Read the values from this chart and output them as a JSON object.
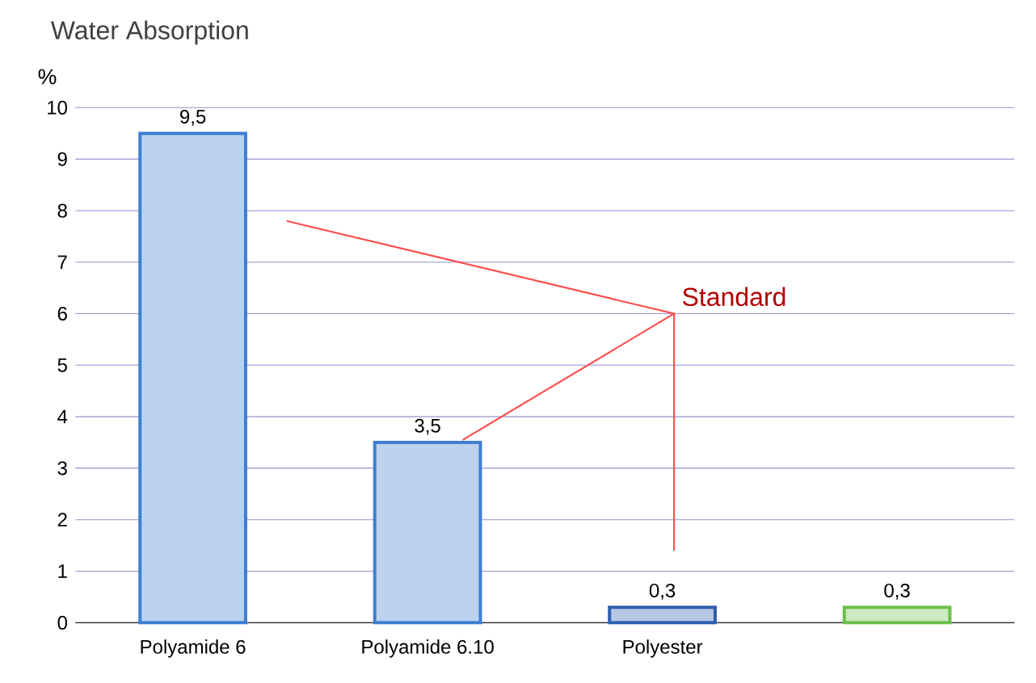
{
  "chart_data": {
    "type": "bar",
    "title": "Water Absorption",
    "ylabel": "%",
    "categories": [
      "Polyamide 6",
      "Polyamide 6.10",
      "Polyester",
      null
    ],
    "values": [
      9.5,
      3.5,
      0.3,
      0.3
    ],
    "colors": [
      "#3f7fd0",
      "#3f7fd0",
      "#2f5fb0",
      "#6cc04a"
    ],
    "value_labels": [
      "9,5",
      "3,5",
      "0,3",
      "0,3"
    ],
    "ylim": [
      0,
      10
    ],
    "yticks": [
      0,
      1,
      2,
      3,
      4,
      5,
      6,
      7,
      8,
      9,
      10
    ],
    "grid": "y",
    "annotations": [
      "Standard"
    ]
  }
}
